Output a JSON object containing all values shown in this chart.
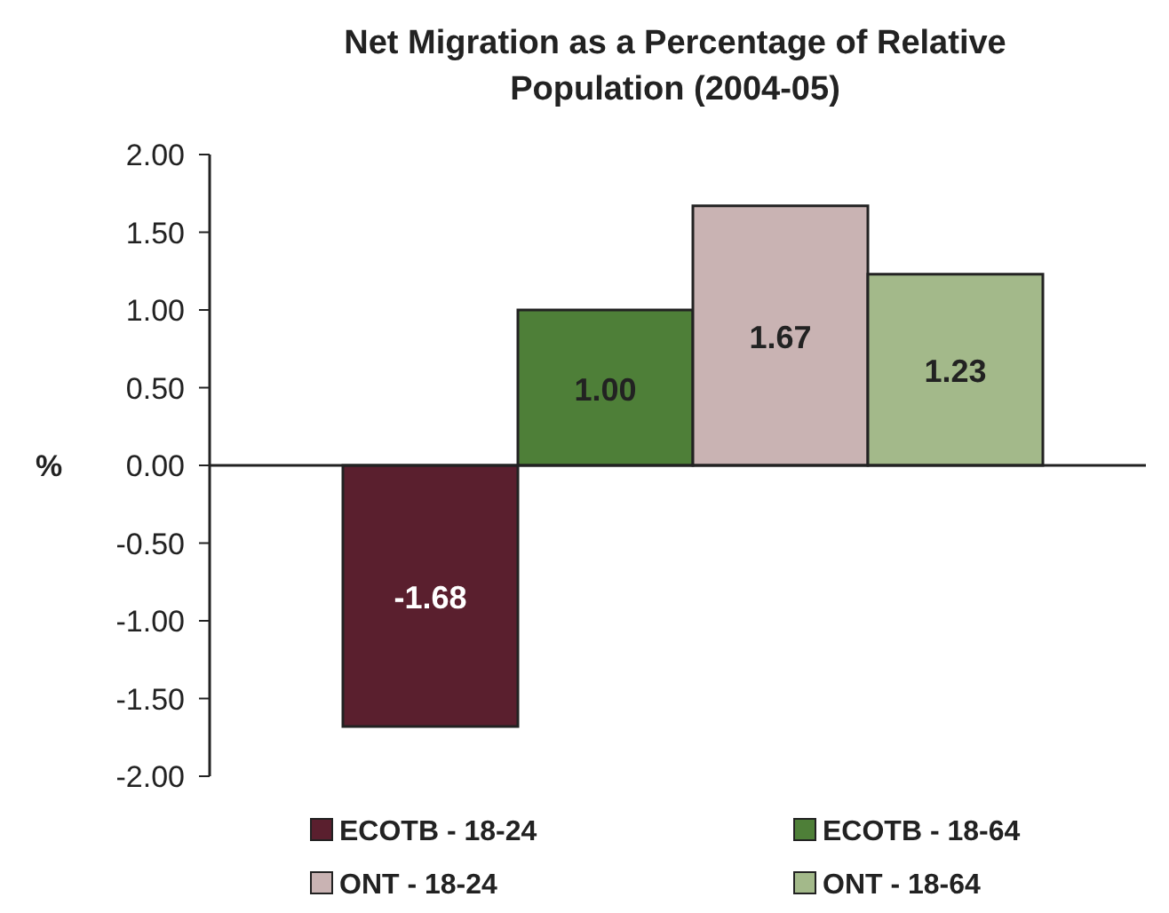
{
  "chart_data": {
    "type": "bar",
    "title": "Net Migration as a Percentage of Relative Population (2004-05)",
    "ylabel": "%",
    "categories": [
      null
    ],
    "series": [
      {
        "name": "ECOTB - 18-24",
        "color": "#5a1f2e",
        "values": [
          -1.68
        ],
        "value_labels": [
          "-1.68"
        ]
      },
      {
        "name": "ECOTB - 18-64",
        "color": "#4e7f38",
        "values": [
          1.0
        ],
        "value_labels": [
          "1.00"
        ]
      },
      {
        "name": "ONT - 18-24",
        "color": "#c9b3b3",
        "values": [
          1.67
        ],
        "value_labels": [
          "1.67"
        ]
      },
      {
        "name": "ONT - 18-64",
        "color": "#a3b98a",
        "values": [
          1.23
        ],
        "value_labels": [
          "1.23"
        ]
      }
    ],
    "ylim": [
      -2,
      2
    ],
    "yticks": [
      {
        "value": -2,
        "label": "-2.00"
      },
      {
        "value": -1.5,
        "label": "-1.50"
      },
      {
        "value": -1,
        "label": "-1.00"
      },
      {
        "value": -0.5,
        "label": "-0.50"
      },
      {
        "value": 0,
        "label": "0.00"
      },
      {
        "value": 0.5,
        "label": "0.50"
      },
      {
        "value": 1,
        "label": "1.00"
      },
      {
        "value": 1.5,
        "label": "1.50"
      },
      {
        "value": 2,
        "label": "2.00"
      }
    ],
    "legend": "bottom"
  }
}
